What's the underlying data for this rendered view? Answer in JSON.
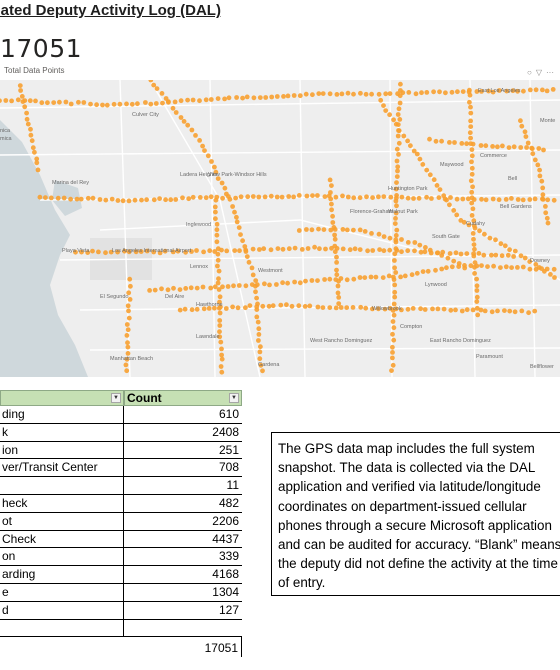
{
  "page": {
    "title": "olidated Deputy Activity Log (DAL)"
  },
  "kpi": {
    "value": "17051",
    "label": "Total Data Points"
  },
  "map": {
    "place_labels": [
      "East Los Angeles",
      "Culver City",
      "Monte",
      "Marina del Rey",
      "nica",
      "mica",
      "Ladera Heights",
      "View Park-Windsor Hills",
      "Commerce",
      "Maywood",
      "Huntington Park",
      "Bell",
      "Bell Gardens",
      "Florence-Graham",
      "Walnut Park",
      "South Gate",
      "Cudahy",
      "Inglewood",
      "Los Angeles International Airport",
      "Lennox",
      "Westmont",
      "Downey",
      "Lynwood",
      "El Segundo",
      "Del Aire",
      "Hawthorne",
      "Willowbrook",
      "Lawndale",
      "West Rancho Dominguez",
      "East Rancho Dominguez",
      "Paramount",
      "Bellflower",
      "Manhattan Beach",
      "Gardena",
      "Compton",
      "Playa Vista"
    ],
    "colors": {
      "land": "#eeeeee",
      "water": "#cfd8dc",
      "road": "#ffffff",
      "dot": "#f7a030",
      "label": "#6a6a6a"
    }
  },
  "table": {
    "headers": [
      "",
      "Count"
    ],
    "rows": [
      {
        "activity": "ding",
        "count": "610"
      },
      {
        "activity": "k",
        "count": "2408"
      },
      {
        "activity": "ion",
        "count": "251"
      },
      {
        "activity": "ver/Transit Center",
        "count": "708"
      },
      {
        "activity": "",
        "count": "11"
      },
      {
        "activity": "heck",
        "count": "482"
      },
      {
        "activity": "ot",
        "count": "2206"
      },
      {
        "activity": "Check",
        "count": "4437"
      },
      {
        "activity": "on",
        "count": "339"
      },
      {
        "activity": "arding",
        "count": "4168"
      },
      {
        "activity": "e",
        "count": "1304"
      },
      {
        "activity": "d",
        "count": "127"
      },
      {
        "activity": "",
        "count": ""
      }
    ],
    "total": "17051"
  },
  "note": {
    "text": "The GPS data map includes the full system snapshot. The data is collected via the DAL application and verified via latitude/longitude coordinates on department-issued cellular phones through a secure Microsoft application and can be audited for accuracy. “Blank” means the deputy did not define the activity at the time of entry."
  }
}
